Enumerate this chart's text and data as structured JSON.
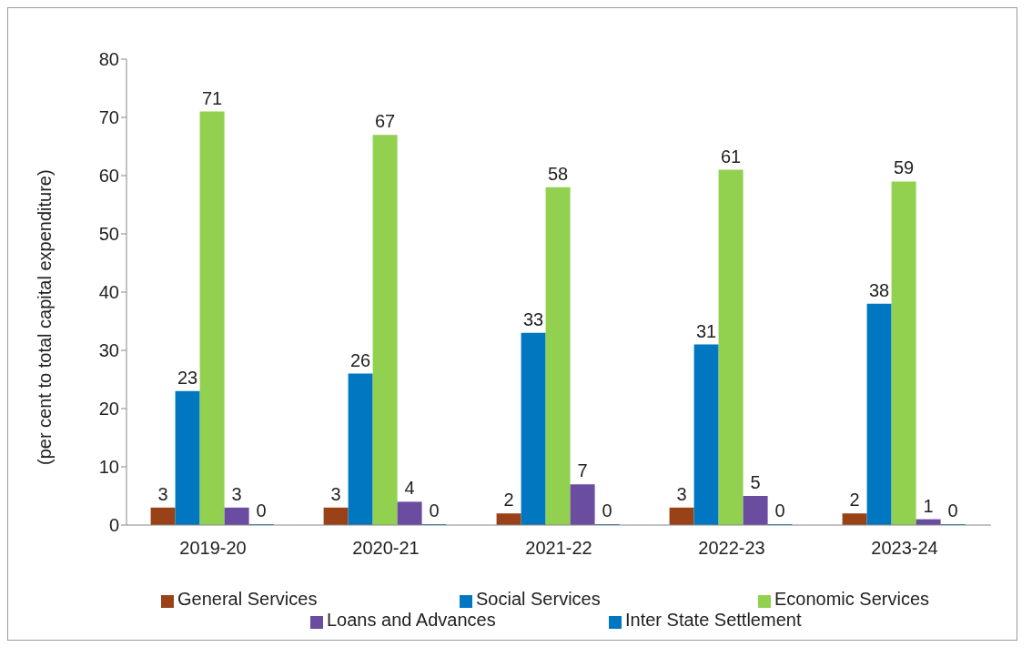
{
  "chart_data": {
    "type": "bar",
    "ylabel": "(per cent to total capital expenditure)",
    "categories": [
      "2019-20",
      "2020-21",
      "2021-22",
      "2022-23",
      "2023-24"
    ],
    "series": [
      {
        "name": "General Services",
        "color": "#9a4217",
        "values": [
          3,
          3,
          2,
          3,
          2
        ]
      },
      {
        "name": "Social Services",
        "color": "#0077c0",
        "values": [
          23,
          26,
          33,
          31,
          38
        ]
      },
      {
        "name": "Economic Services",
        "color": "#92d050",
        "values": [
          71,
          67,
          58,
          61,
          59
        ]
      },
      {
        "name": "Loans and Advances",
        "color": "#6a4ca0",
        "values": [
          3,
          4,
          7,
          5,
          1
        ]
      },
      {
        "name": "Inter State Settlement",
        "color": "#0077c0",
        "values": [
          0,
          0,
          0,
          0,
          0
        ]
      }
    ],
    "ylim": [
      0,
      80
    ],
    "yticks": [
      0,
      10,
      20,
      30,
      40,
      50,
      60,
      70,
      80
    ],
    "grid": false,
    "legend": "bottom",
    "data_labels": true
  }
}
